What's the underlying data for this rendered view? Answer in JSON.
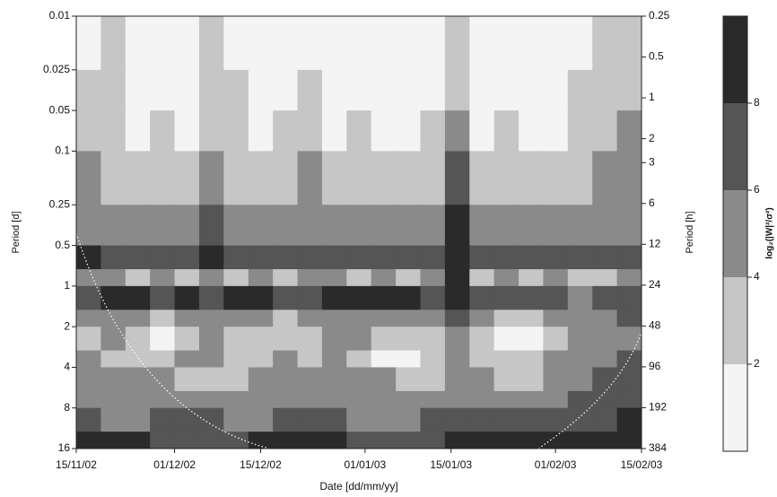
{
  "chart_data": {
    "type": "heatmap",
    "x_label": "Date [dd/mm/yy]",
    "y_label": "Period [d]",
    "y2_label": "Period [h]",
    "colorbar_label": "log₂(|W|²/σ²)",
    "xlim": [
      0,
      92
    ],
    "xticks": [
      {
        "value": 0,
        "label": "15/11/02"
      },
      {
        "value": 16,
        "label": "01/12/02"
      },
      {
        "value": 30,
        "label": "15/12/02"
      },
      {
        "value": 47,
        "label": "01/01/03"
      },
      {
        "value": 61,
        "label": "15/01/03"
      },
      {
        "value": 78,
        "label": "01/02/03"
      },
      {
        "value": 92,
        "label": "15/02/03"
      }
    ],
    "ylim": [
      0.01,
      16
    ],
    "yticks": [
      0.01,
      0.025,
      0.05,
      0.1,
      0.25,
      0.5,
      1,
      2,
      4,
      8,
      16
    ],
    "y2lim": [
      0.25,
      384
    ],
    "y2ticks": [
      0.25,
      0.5,
      1,
      2,
      3,
      6,
      12,
      24,
      48,
      96,
      192,
      384
    ],
    "log_scale": true,
    "y_inverted": true,
    "xbins": [
      0,
      4,
      8,
      12,
      16,
      20,
      24,
      28,
      32,
      36,
      40,
      44,
      48,
      52,
      56,
      60,
      64,
      68,
      72,
      76,
      80,
      84,
      88,
      92
    ],
    "ybins": [
      0.01,
      0.025,
      0.05,
      0.1,
      0.25,
      0.5,
      0.75,
      1,
      1.5,
      2,
      3,
      4,
      6,
      8,
      12,
      16
    ],
    "z": [
      [
        1,
        3,
        1,
        1,
        1,
        3,
        1,
        1,
        1,
        1,
        1,
        1,
        1,
        1,
        1,
        3,
        1,
        1,
        1,
        1,
        1,
        3,
        3
      ],
      [
        3,
        3,
        1,
        1,
        1,
        3,
        3,
        1,
        1,
        3,
        1,
        1,
        1,
        1,
        1,
        3,
        1,
        1,
        1,
        1,
        3,
        3,
        3
      ],
      [
        3,
        3,
        1,
        3,
        1,
        3,
        3,
        1,
        3,
        3,
        1,
        3,
        1,
        1,
        3,
        5,
        1,
        3,
        1,
        1,
        3,
        3,
        5
      ],
      [
        5,
        3,
        3,
        3,
        3,
        5,
        3,
        3,
        3,
        5,
        3,
        3,
        3,
        3,
        3,
        7,
        3,
        3,
        3,
        3,
        3,
        5,
        5
      ],
      [
        5,
        5,
        5,
        5,
        5,
        7,
        5,
        5,
        5,
        5,
        5,
        5,
        5,
        5,
        5,
        9,
        5,
        5,
        5,
        5,
        5,
        5,
        5
      ],
      [
        9,
        7,
        7,
        7,
        7,
        9,
        7,
        7,
        7,
        7,
        7,
        7,
        7,
        7,
        7,
        9,
        7,
        7,
        7,
        7,
        7,
        7,
        7
      ],
      [
        5,
        5,
        3,
        5,
        3,
        5,
        3,
        5,
        3,
        5,
        5,
        3,
        5,
        3,
        5,
        9,
        3,
        5,
        3,
        5,
        3,
        3,
        5
      ],
      [
        7,
        9,
        9,
        7,
        9,
        7,
        9,
        9,
        7,
        7,
        9,
        9,
        9,
        9,
        7,
        9,
        7,
        7,
        7,
        7,
        5,
        7,
        7
      ],
      [
        5,
        5,
        5,
        3,
        5,
        5,
        5,
        5,
        3,
        5,
        5,
        5,
        5,
        5,
        5,
        7,
        5,
        3,
        3,
        5,
        5,
        5,
        7
      ],
      [
        3,
        5,
        3,
        1,
        3,
        5,
        3,
        3,
        3,
        3,
        5,
        5,
        3,
        3,
        3,
        5,
        3,
        1,
        1,
        3,
        5,
        5,
        5
      ],
      [
        5,
        3,
        3,
        3,
        5,
        5,
        3,
        3,
        5,
        3,
        5,
        3,
        1,
        1,
        3,
        5,
        3,
        3,
        3,
        5,
        5,
        5,
        7
      ],
      [
        5,
        5,
        5,
        5,
        3,
        3,
        3,
        5,
        5,
        5,
        5,
        5,
        5,
        3,
        3,
        5,
        5,
        3,
        3,
        5,
        5,
        7,
        7
      ],
      [
        5,
        5,
        5,
        5,
        5,
        5,
        5,
        5,
        5,
        5,
        5,
        5,
        5,
        5,
        5,
        5,
        5,
        5,
        5,
        5,
        7,
        7,
        7
      ],
      [
        7,
        5,
        5,
        7,
        7,
        7,
        5,
        5,
        7,
        7,
        7,
        5,
        5,
        5,
        7,
        7,
        7,
        7,
        7,
        7,
        7,
        7,
        9
      ],
      [
        9,
        9,
        9,
        7,
        7,
        7,
        7,
        9,
        9,
        9,
        9,
        7,
        7,
        7,
        7,
        9,
        9,
        9,
        9,
        9,
        9,
        9,
        9
      ]
    ],
    "levels": [
      0,
      2,
      4,
      6,
      8,
      10
    ],
    "level_ticks": [
      2,
      4,
      6,
      8
    ],
    "colors": [
      "#f4f4f4",
      "#c6c6c6",
      "#8a8a8a",
      "#555555",
      "#2a2a2a"
    ]
  }
}
